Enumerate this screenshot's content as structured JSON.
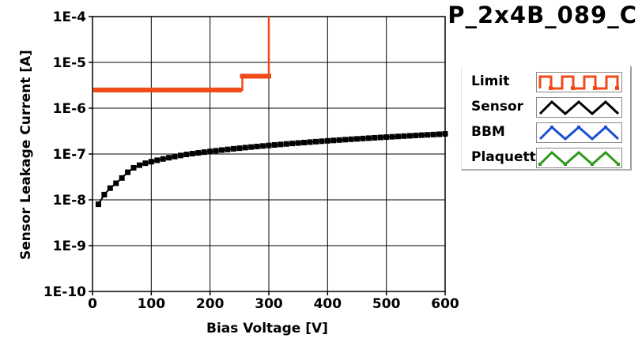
{
  "title": "P_2x4B_089_C",
  "legend": {
    "items": [
      {
        "label": "Limit",
        "color": "#f04a18",
        "pattern": "square-wave"
      },
      {
        "label": "Sensor",
        "color": "#000000",
        "pattern": "triangle-wave"
      },
      {
        "label": "BBM",
        "color": "#1a4fcf",
        "pattern": "triangle-wave"
      },
      {
        "label": "Plaquette",
        "color": "#2e9a1c",
        "pattern": "triangle-wave"
      }
    ]
  },
  "chart_data": {
    "type": "line",
    "xlabel": "Bias Voltage [V]",
    "ylabel": "Sensor Leakage Current [A]",
    "xlim": [
      0,
      600
    ],
    "ylim": [
      1e-10,
      0.0001
    ],
    "yscale": "log",
    "grid": true,
    "x_ticks": [
      "0",
      "100",
      "200",
      "300",
      "400",
      "500",
      "600"
    ],
    "y_ticks": [
      "1E-10",
      "1E-9",
      "1E-8",
      "1E-7",
      "1E-6",
      "1E-5",
      "1E-4"
    ],
    "series": [
      {
        "name": "Limit",
        "color": "#f04a18",
        "style": "step",
        "points": [
          [
            5,
            2.5e-06
          ],
          [
            10,
            2.5e-06
          ],
          [
            20,
            2.5e-06
          ],
          [
            30,
            2.5e-06
          ],
          [
            40,
            2.5e-06
          ],
          [
            50,
            2.5e-06
          ],
          [
            60,
            2.5e-06
          ],
          [
            70,
            2.5e-06
          ],
          [
            80,
            2.5e-06
          ],
          [
            90,
            2.5e-06
          ],
          [
            100,
            2.5e-06
          ],
          [
            110,
            2.5e-06
          ],
          [
            120,
            2.5e-06
          ],
          [
            130,
            2.5e-06
          ],
          [
            140,
            2.5e-06
          ],
          [
            150,
            2.5e-06
          ],
          [
            160,
            2.5e-06
          ],
          [
            170,
            2.5e-06
          ],
          [
            180,
            2.5e-06
          ],
          [
            190,
            2.5e-06
          ],
          [
            200,
            2.5e-06
          ],
          [
            210,
            2.5e-06
          ],
          [
            220,
            2.5e-06
          ],
          [
            230,
            2.5e-06
          ],
          [
            240,
            2.5e-06
          ],
          [
            250,
            2.5e-06
          ],
          [
            255,
            5e-06
          ],
          [
            260,
            5e-06
          ],
          [
            270,
            5e-06
          ],
          [
            280,
            5e-06
          ],
          [
            290,
            5e-06
          ],
          [
            300,
            5e-06
          ],
          [
            300,
            0.0001
          ]
        ]
      },
      {
        "name": "Sensor",
        "color": "#000000",
        "style": "markers-line",
        "points": [
          [
            10,
            8e-09
          ],
          [
            20,
            1.3e-08
          ],
          [
            30,
            1.8e-08
          ],
          [
            40,
            2.3e-08
          ],
          [
            50,
            3e-08
          ],
          [
            60,
            4e-08
          ],
          [
            70,
            5e-08
          ],
          [
            80,
            5.7e-08
          ],
          [
            90,
            6.3e-08
          ],
          [
            100,
            6.8e-08
          ],
          [
            110,
            7.3e-08
          ],
          [
            120,
            7.8e-08
          ],
          [
            130,
            8.3e-08
          ],
          [
            140,
            8.8e-08
          ],
          [
            150,
            9.3e-08
          ],
          [
            160,
            9.8e-08
          ],
          [
            170,
            1.02e-07
          ],
          [
            180,
            1.06e-07
          ],
          [
            190,
            1.1e-07
          ],
          [
            200,
            1.14e-07
          ],
          [
            210,
            1.18e-07
          ],
          [
            220,
            1.22e-07
          ],
          [
            230,
            1.26e-07
          ],
          [
            240,
            1.3e-07
          ],
          [
            250,
            1.34e-07
          ],
          [
            260,
            1.38e-07
          ],
          [
            270,
            1.42e-07
          ],
          [
            280,
            1.46e-07
          ],
          [
            290,
            1.5e-07
          ],
          [
            300,
            1.54e-07
          ],
          [
            310,
            1.58e-07
          ],
          [
            320,
            1.62e-07
          ],
          [
            330,
            1.66e-07
          ],
          [
            340,
            1.7e-07
          ],
          [
            350,
            1.74e-07
          ],
          [
            360,
            1.78e-07
          ],
          [
            370,
            1.82e-07
          ],
          [
            380,
            1.86e-07
          ],
          [
            390,
            1.9e-07
          ],
          [
            400,
            1.94e-07
          ],
          [
            410,
            1.98e-07
          ],
          [
            420,
            2.02e-07
          ],
          [
            430,
            2.06e-07
          ],
          [
            440,
            2.1e-07
          ],
          [
            450,
            2.14e-07
          ],
          [
            460,
            2.18e-07
          ],
          [
            470,
            2.22e-07
          ],
          [
            480,
            2.26e-07
          ],
          [
            490,
            2.3e-07
          ],
          [
            500,
            2.34e-07
          ],
          [
            510,
            2.38e-07
          ],
          [
            520,
            2.42e-07
          ],
          [
            530,
            2.46e-07
          ],
          [
            540,
            2.5e-07
          ],
          [
            550,
            2.54e-07
          ],
          [
            560,
            2.58e-07
          ],
          [
            570,
            2.62e-07
          ],
          [
            580,
            2.66e-07
          ],
          [
            590,
            2.7e-07
          ],
          [
            600,
            2.75e-07
          ]
        ]
      }
    ]
  }
}
